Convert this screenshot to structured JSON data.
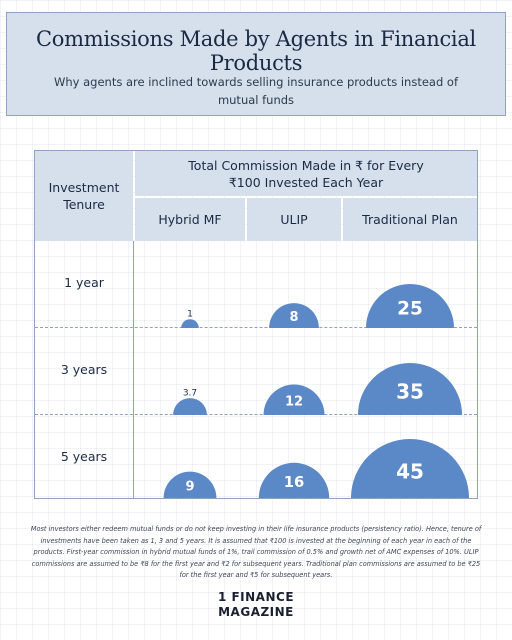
{
  "header": {
    "title": "Commissions Made by Agents in Financial Products",
    "subtitle": "Why agents are inclined towards selling insurance products instead of mutual funds"
  },
  "table": {
    "row_header": "Investment Tenure",
    "group_header": "Total Commission Made in ₹ for Every ₹100 Invested Each Year",
    "column_headers": [
      "Hybrid MF",
      "ULIP",
      "Traditional Plan"
    ],
    "row_labels": [
      "1 year",
      "3 years",
      "5 years"
    ]
  },
  "colors": {
    "bubble": "#5b88c6",
    "header_fill": "#d5e0ec",
    "border": "#8ea3bf"
  },
  "chart_data": {
    "type": "table",
    "categories": [
      "1 year",
      "3 years",
      "5 years"
    ],
    "series": [
      {
        "name": "Hybrid MF",
        "values": [
          1,
          3.7,
          9
        ]
      },
      {
        "name": "ULIP",
        "values": [
          8,
          12,
          16
        ]
      },
      {
        "name": "Traditional Plan",
        "values": [
          25,
          35,
          45
        ]
      }
    ]
  },
  "footnote": "Most investors either redeem mutual funds or do not keep investing in their life insurance products (persistency ratio). Hence, tenure of investments have been taken as 1, 3 and 5 years. It is assumed that ₹100 is invested at the beginning of each year in each of the products. First-year commission in hybrid mutual funds of 1%, trail commission of 0.5% and growth net of AMC expenses of 10%. ULIP commissions are assumed to be ₹8 for the first year and ₹2 for subsequent years. Traditional plan commissions are assumed to be ₹25 for the first year and ₹5 for subsequent years.",
  "brand": {
    "line1": "1 FINANCE",
    "line2": "MAGAZINE"
  }
}
